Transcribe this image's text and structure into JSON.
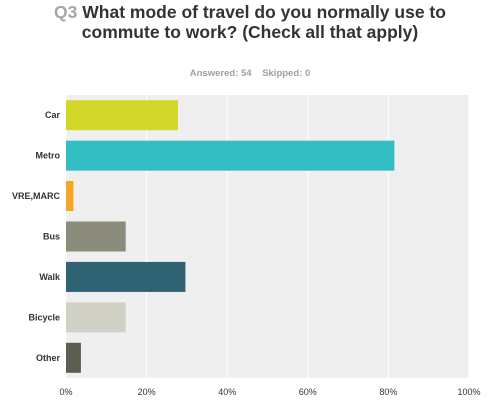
{
  "question": {
    "number": "Q3",
    "text": "What mode of travel do you normally use to commute to work? (Check all that apply)"
  },
  "stats": {
    "answered": "Answered: 54",
    "skipped": "Skipped: 0"
  },
  "chart_data": {
    "type": "bar",
    "orientation": "horizontal",
    "categories": [
      "Car",
      "Metro",
      "VRE,MARC",
      "Bus",
      "Walk",
      "Bicycle",
      "Other"
    ],
    "values": [
      27.78,
      81.48,
      1.85,
      14.81,
      29.63,
      14.81,
      3.7
    ],
    "colors": [
      "#d2d82a",
      "#32bec2",
      "#f5a623",
      "#8c8c7c",
      "#2f6272",
      "#d0d0c4",
      "#5e5e50"
    ],
    "xlim": [
      0,
      100
    ],
    "xticks": [
      "0%",
      "20%",
      "40%",
      "60%",
      "80%",
      "100%"
    ],
    "grid": true,
    "plot_background": "#efefef"
  }
}
